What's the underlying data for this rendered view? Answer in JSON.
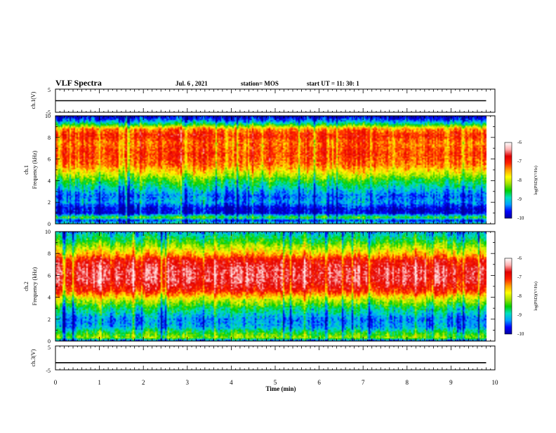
{
  "header": {
    "title": "VLF Spectra",
    "date": "Jul. 6 , 2021",
    "station": "station= MOS",
    "start": "start UT =  11: 30: 1"
  },
  "colors": {
    "colormap": [
      "#0000a0",
      "#0000ff",
      "#00a0ff",
      "#00e0c0",
      "#00d000",
      "#a0e000",
      "#ffff00",
      "#ffa000",
      "#ff2000",
      "#e00000",
      "#ffb0b0",
      "#ffffff"
    ],
    "axis": "#000000",
    "background": "#ffffff"
  },
  "chart_data": [
    {
      "type": "line",
      "panel": "ch1-waveform",
      "ylabel": "ch.1(V)",
      "ylim": [
        -5,
        5
      ],
      "ytick_labels": [
        "5",
        "-5"
      ],
      "xlim": [
        0,
        10
      ],
      "series": [
        {
          "x": [
            0,
            9.8
          ],
          "values": [
            0,
            0
          ]
        }
      ]
    },
    {
      "type": "heatmap",
      "panel": "ch1-spectrogram",
      "ylabel": "ch.1\nFrequency (kHz)",
      "ylim": [
        0,
        10
      ],
      "ytick_labels": [
        "0",
        "2",
        "4",
        "6",
        "8",
        "10"
      ],
      "xlim": [
        0,
        10
      ],
      "data_end_min": 9.8,
      "level_profile": {
        "freq_khz": [
          0,
          0.3,
          0.6,
          1.0,
          1.5,
          2.0,
          2.6,
          3.2,
          4.0,
          4.8,
          5.5,
          6.5,
          7.5,
          8.2,
          8.8,
          9.2,
          9.6,
          10
        ],
        "log_psd": [
          -8.8,
          -9.6,
          -8.4,
          -9.8,
          -9.7,
          -9.2,
          -9.4,
          -9.0,
          -8.5,
          -7.8,
          -7.3,
          -7.1,
          -7.3,
          -7.0,
          -7.4,
          -8.6,
          -9.4,
          -9.9
        ]
      },
      "colorbar": {
        "min": -10,
        "max": -6,
        "tick_labels": [
          "-6",
          "-7",
          "-8",
          "-9",
          "-10"
        ],
        "label": "log(PSD)(V²/Hz)"
      }
    },
    {
      "type": "heatmap",
      "panel": "ch2-spectrogram",
      "ylabel": "ch.2\nFrequency (kHz)",
      "ylim": [
        0,
        10
      ],
      "ytick_labels": [
        "0",
        "2",
        "4",
        "6",
        "8",
        "10"
      ],
      "xlim": [
        0,
        10
      ],
      "data_end_min": 9.8,
      "level_profile": {
        "freq_khz": [
          0,
          0.3,
          0.8,
          1.3,
          2.0,
          3.0,
          3.8,
          4.6,
          5.5,
          6.5,
          7.4,
          8.0,
          8.6,
          9.2,
          9.7,
          10
        ],
        "log_psd": [
          -9.6,
          -8.2,
          -8.6,
          -9.2,
          -9.3,
          -8.7,
          -8.0,
          -7.0,
          -6.6,
          -6.6,
          -6.9,
          -7.6,
          -8.1,
          -8.6,
          -8.9,
          -9.2
        ]
      },
      "colorbar": {
        "min": -10,
        "max": -6,
        "tick_labels": [
          "-6",
          "-7",
          "-8",
          "-9",
          "-10"
        ],
        "label": "log(PSD)(V²/Hz)"
      }
    },
    {
      "type": "line",
      "panel": "ch3-waveform",
      "ylabel": "ch.3(V)",
      "ylim": [
        -5,
        5
      ],
      "ytick_labels": [
        "5",
        "-5"
      ],
      "xlim": [
        0,
        10
      ],
      "series": [
        {
          "x": [
            0,
            9.8
          ],
          "values": [
            -2,
            -2
          ]
        }
      ]
    }
  ],
  "x_axis": {
    "label": "Time (min)",
    "tick_labels": [
      "0",
      "1",
      "2",
      "3",
      "4",
      "5",
      "6",
      "7",
      "8",
      "9",
      "10"
    ],
    "range": [
      0,
      10
    ]
  }
}
